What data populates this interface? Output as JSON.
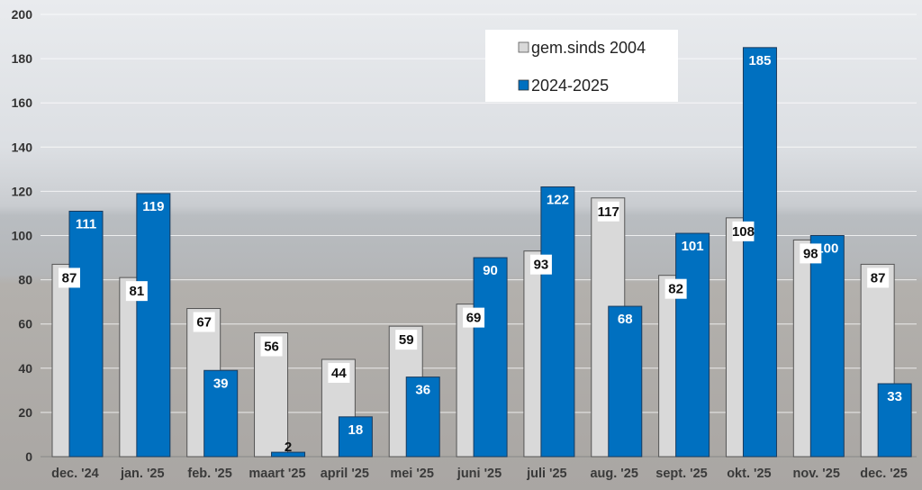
{
  "chart_data": {
    "type": "bar",
    "title": "",
    "xlabel": "",
    "ylabel": "",
    "ylim": [
      0,
      200
    ],
    "yticks": [
      0,
      20,
      40,
      60,
      80,
      100,
      120,
      140,
      160,
      180,
      200
    ],
    "grid": true,
    "legend_position": "top-right",
    "categories": [
      "dec. '24",
      "jan. '25",
      "feb. '25",
      "maart '25",
      "april '25",
      "mei '25",
      "juni '25",
      "juli '25",
      "aug. '25",
      "sept. '25",
      "okt. '25",
      "nov. '25",
      "dec. '25"
    ],
    "series": [
      {
        "name": "gem.sinds 2004",
        "color": "#d9d9d9",
        "values": [
          87,
          81,
          67,
          56,
          44,
          59,
          69,
          93,
          117,
          82,
          108,
          98,
          87
        ]
      },
      {
        "name": "2024-2025",
        "color": "#0070c0",
        "values": [
          111,
          119,
          39,
          2,
          18,
          36,
          90,
          122,
          68,
          101,
          185,
          100,
          33
        ]
      }
    ]
  }
}
